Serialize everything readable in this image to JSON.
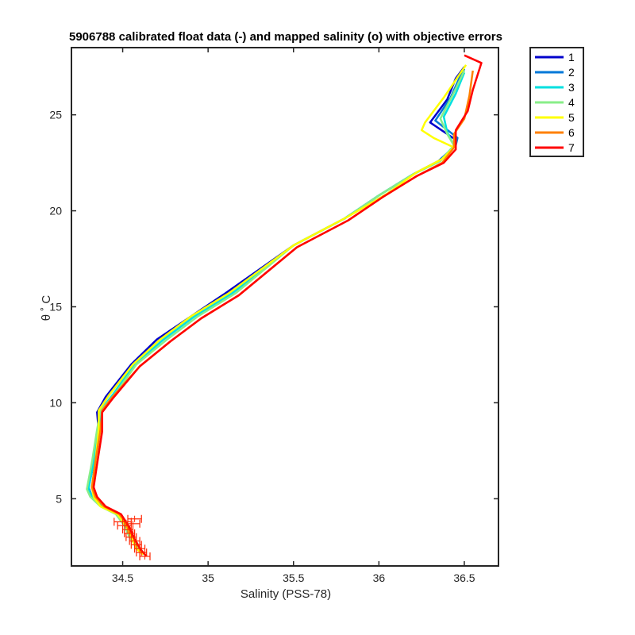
{
  "chart_data": {
    "type": "line",
    "title": "5906788 calibrated float data (-) and mapped salinity (o) with objective errors",
    "xlabel": "Salinity (PSS-78)",
    "ylabel": "θ ˚ C",
    "xlim": [
      34.2,
      36.7
    ],
    "ylim": [
      1.5,
      28.5
    ],
    "xticks": [
      34.5,
      35,
      35.5,
      36,
      36.5
    ],
    "yticks": [
      5,
      10,
      15,
      20,
      25
    ],
    "xtick_labels": [
      "34.5",
      "35",
      "35.5",
      "36",
      "36.5"
    ],
    "ytick_labels": [
      "5",
      "10",
      "15",
      "20",
      "25"
    ],
    "grid": false,
    "legend_position": "outside-top-right",
    "series": [
      {
        "name": "1",
        "color": "#0000cc",
        "x": [
          34.63,
          34.6,
          34.55,
          34.52,
          34.48,
          34.38,
          34.32,
          34.3,
          34.33,
          34.36,
          34.35,
          34.4,
          34.55,
          34.7,
          34.9,
          35.1,
          35.5,
          35.8,
          36.0,
          36.2,
          36.35,
          36.45,
          36.45,
          36.3,
          36.4,
          36.45,
          36.5
        ],
        "y": [
          2.1,
          2.4,
          3.0,
          3.6,
          4.2,
          4.6,
          5.1,
          5.6,
          6.8,
          8.5,
          9.5,
          10.3,
          12.0,
          13.3,
          14.5,
          15.7,
          18.2,
          19.6,
          20.8,
          21.9,
          22.6,
          23.4,
          23.7,
          24.6,
          25.8,
          26.9,
          27.5
        ]
      },
      {
        "name": "2",
        "color": "#0078d8",
        "x": [
          34.63,
          34.6,
          34.56,
          34.52,
          34.47,
          34.38,
          34.32,
          34.3,
          34.33,
          34.36,
          34.36,
          34.42,
          34.56,
          34.72,
          34.9,
          35.12,
          35.5,
          35.8,
          36.0,
          36.2,
          36.35,
          36.45,
          36.46,
          36.33,
          36.42,
          36.47,
          36.5
        ],
        "y": [
          2.1,
          2.4,
          3.0,
          3.6,
          4.2,
          4.6,
          5.1,
          5.6,
          6.9,
          8.6,
          9.6,
          10.4,
          12.0,
          13.3,
          14.5,
          15.7,
          18.2,
          19.6,
          20.8,
          21.9,
          22.6,
          23.4,
          23.8,
          24.7,
          25.9,
          26.9,
          27.4
        ]
      },
      {
        "name": "3",
        "color": "#00e0e0",
        "x": [
          34.62,
          34.59,
          34.55,
          34.52,
          34.47,
          34.38,
          34.32,
          34.3,
          34.33,
          34.36,
          34.37,
          34.44,
          34.57,
          34.74,
          34.92,
          35.14,
          35.5,
          35.8,
          36.0,
          36.2,
          36.36,
          36.44,
          36.4,
          36.38,
          36.45,
          36.5
        ],
        "y": [
          2.1,
          2.4,
          3.0,
          3.6,
          4.2,
          4.6,
          5.1,
          5.5,
          6.9,
          8.6,
          9.6,
          10.4,
          12.0,
          13.3,
          14.5,
          15.7,
          18.2,
          19.6,
          20.8,
          21.9,
          22.6,
          23.4,
          24.1,
          24.9,
          26.1,
          27.2
        ]
      },
      {
        "name": "4",
        "color": "#88ee88",
        "x": [
          34.62,
          34.59,
          34.54,
          34.51,
          34.46,
          34.37,
          34.31,
          34.29,
          34.32,
          34.35,
          34.37,
          34.45,
          34.58,
          34.76,
          34.94,
          35.16,
          35.5,
          35.8,
          36.0,
          36.2,
          36.36,
          36.44,
          36.4,
          36.36,
          36.43,
          36.5
        ],
        "y": [
          2.1,
          2.4,
          3.0,
          3.6,
          4.2,
          4.6,
          5.1,
          5.5,
          6.9,
          8.6,
          9.6,
          10.4,
          12.0,
          13.3,
          14.5,
          15.7,
          18.2,
          19.6,
          20.8,
          21.9,
          22.6,
          23.4,
          24.0,
          24.8,
          26.0,
          27.3
        ]
      },
      {
        "name": "5",
        "color": "#ffff00",
        "x": [
          34.62,
          34.58,
          34.55,
          34.52,
          34.47,
          34.37,
          34.33,
          34.32,
          34.34,
          34.36,
          34.36,
          34.42,
          34.56,
          34.72,
          34.9,
          35.12,
          35.5,
          35.82,
          36.05,
          36.22,
          36.37,
          36.44,
          36.32,
          36.25,
          36.27,
          36.38,
          36.51
        ],
        "y": [
          2.1,
          2.4,
          3.0,
          3.6,
          4.2,
          4.6,
          5.1,
          5.6,
          6.9,
          8.6,
          9.6,
          10.4,
          12.0,
          13.3,
          14.5,
          15.7,
          18.2,
          19.7,
          20.9,
          22.0,
          22.7,
          23.3,
          23.8,
          24.2,
          24.6,
          25.9,
          27.6
        ]
      },
      {
        "name": "6",
        "color": "#ff8000",
        "x": [
          34.63,
          34.6,
          34.56,
          34.53,
          34.48,
          34.39,
          34.34,
          34.32,
          34.34,
          34.37,
          34.38,
          34.44,
          34.6,
          34.78,
          34.96,
          35.18,
          35.52,
          35.82,
          36.02,
          36.22,
          36.37,
          36.44,
          36.44,
          36.5,
          36.53,
          36.55
        ],
        "y": [
          2.1,
          2.4,
          3.0,
          3.6,
          4.2,
          4.6,
          5.1,
          5.6,
          6.9,
          8.6,
          9.6,
          10.3,
          11.9,
          13.2,
          14.4,
          15.6,
          18.1,
          19.5,
          20.7,
          21.8,
          22.5,
          23.3,
          24.0,
          24.8,
          26.0,
          27.3
        ]
      },
      {
        "name": "7",
        "color": "#ff0000",
        "x": [
          34.64,
          34.61,
          34.57,
          34.54,
          34.49,
          34.4,
          34.35,
          34.33,
          34.35,
          34.38,
          34.38,
          34.44,
          34.6,
          34.78,
          34.96,
          35.18,
          35.52,
          35.82,
          36.02,
          36.22,
          36.38,
          36.45,
          36.45,
          36.52,
          36.55,
          36.6,
          36.5
        ],
        "y": [
          2.0,
          2.3,
          2.9,
          3.5,
          4.2,
          4.6,
          5.1,
          5.6,
          6.8,
          8.5,
          9.5,
          10.2,
          11.9,
          13.2,
          14.4,
          15.6,
          18.1,
          19.5,
          20.7,
          21.8,
          22.5,
          23.2,
          24.2,
          25.2,
          26.3,
          27.7,
          28.1
        ]
      }
    ],
    "error_bars": {
      "color": "#ff2400",
      "points": [
        {
          "x": 34.63,
          "y": 2.0,
          "err": 0.03
        },
        {
          "x": 34.61,
          "y": 2.2,
          "err": 0.03
        },
        {
          "x": 34.6,
          "y": 2.4,
          "err": 0.03
        },
        {
          "x": 34.58,
          "y": 2.6,
          "err": 0.03
        },
        {
          "x": 34.57,
          "y": 2.8,
          "err": 0.03
        },
        {
          "x": 34.55,
          "y": 3.0,
          "err": 0.03
        },
        {
          "x": 34.54,
          "y": 3.2,
          "err": 0.03
        },
        {
          "x": 34.53,
          "y": 3.4,
          "err": 0.03
        },
        {
          "x": 34.51,
          "y": 3.6,
          "err": 0.04
        },
        {
          "x": 34.5,
          "y": 3.8,
          "err": 0.05
        },
        {
          "x": 34.56,
          "y": 3.7,
          "err": 0.04
        },
        {
          "x": 34.57,
          "y": 3.95,
          "err": 0.04
        }
      ]
    }
  }
}
